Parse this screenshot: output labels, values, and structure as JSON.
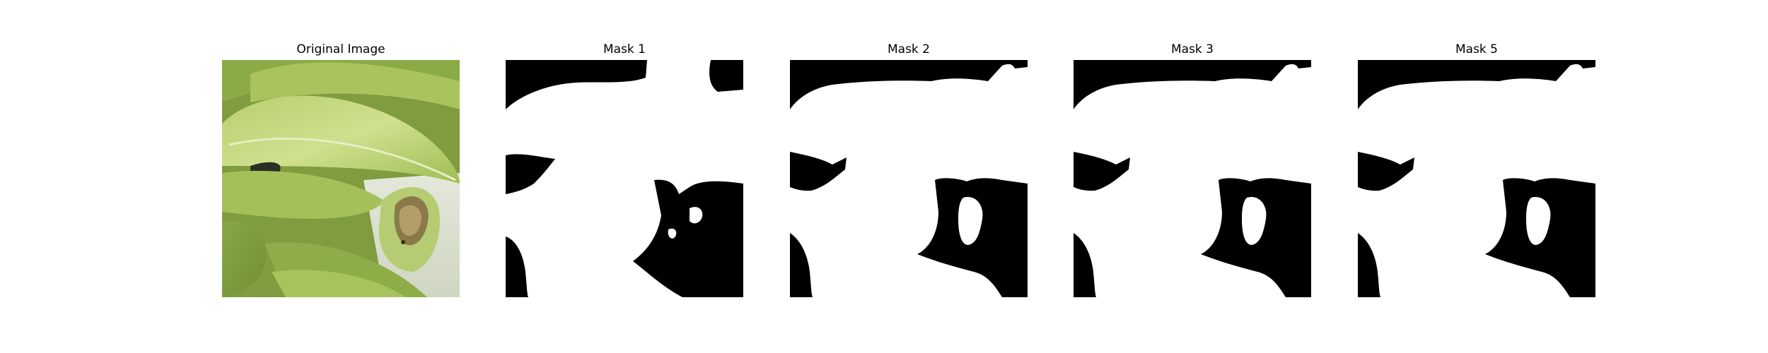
{
  "figure": {
    "panels": [
      {
        "title": "Original Image",
        "kind": "photo"
      },
      {
        "title": "Mask 1",
        "kind": "mask"
      },
      {
        "title": "Mask 2",
        "kind": "mask"
      },
      {
        "title": "Mask 3",
        "kind": "mask"
      },
      {
        "title": "Mask 5",
        "kind": "mask"
      }
    ],
    "colors": {
      "mask_foreground": "#ffffff",
      "mask_background": "#000000",
      "leaf_light": "#c8d98a",
      "leaf_mid": "#9fbd52",
      "leaf_dark": "#6f8f34",
      "background_pale": "#dfe3d6"
    }
  }
}
